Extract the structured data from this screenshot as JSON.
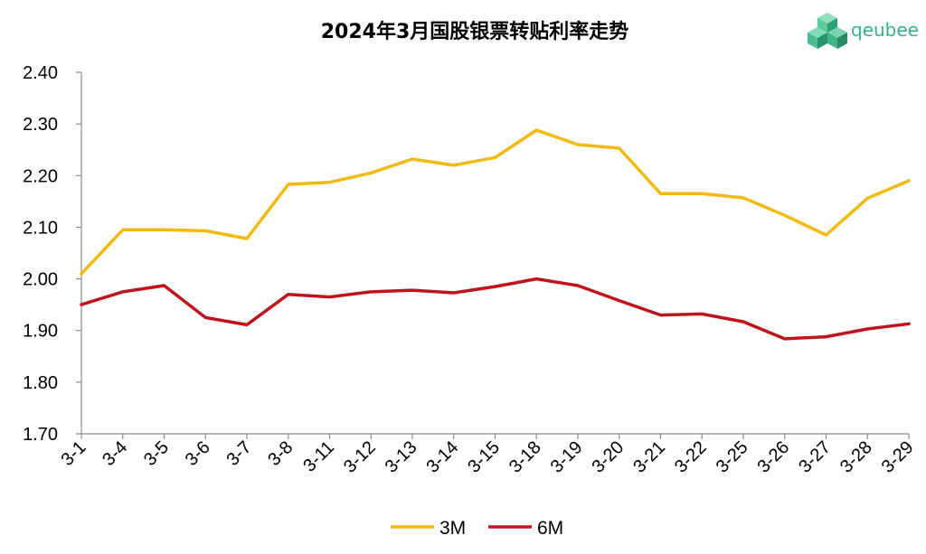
{
  "logo": {
    "text": "qeubee",
    "color": "#37b38a",
    "icon": "hexagon-cubes-icon"
  },
  "chart_data": {
    "type": "line",
    "title": "2024年3月国股银票转贴利率走势",
    "xlabel": "",
    "ylabel": "",
    "categories": [
      "3-1",
      "3-4",
      "3-5",
      "3-6",
      "3-7",
      "3-8",
      "3-11",
      "3-12",
      "3-13",
      "3-14",
      "3-15",
      "3-18",
      "3-19",
      "3-20",
      "3-21",
      "3-22",
      "3-25",
      "3-26",
      "3-27",
      "3-28",
      "3-29"
    ],
    "ylim": [
      1.7,
      2.4
    ],
    "yticks": [
      "2.40",
      "2.30",
      "2.20",
      "2.10",
      "2.00",
      "1.90",
      "1.80",
      "1.70"
    ],
    "grid": false,
    "legend_position": "bottom",
    "series": [
      {
        "name": "3M",
        "color": "#f2b90f",
        "values": [
          2.01,
          2.095,
          2.095,
          2.093,
          2.078,
          2.183,
          2.187,
          2.205,
          2.232,
          2.22,
          2.235,
          2.288,
          2.26,
          2.253,
          2.165,
          2.165,
          2.157,
          2.123,
          2.085,
          2.156,
          2.19
        ]
      },
      {
        "name": "6M",
        "color": "#c0141c",
        "values": [
          1.95,
          1.975,
          1.987,
          1.925,
          1.911,
          1.97,
          1.965,
          1.975,
          1.978,
          1.973,
          1.985,
          2.0,
          1.987,
          1.958,
          1.93,
          1.932,
          1.917,
          1.884,
          1.888,
          1.903,
          1.913
        ]
      }
    ]
  }
}
